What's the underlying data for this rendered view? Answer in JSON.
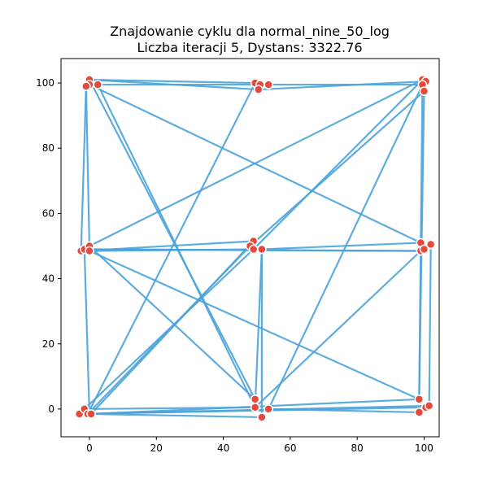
{
  "chart_data": {
    "type": "scatter",
    "title": "Znajdowanie cyklu dla normal_nine_50_log",
    "subtitle": "Liczba iteracji 5, Dystans: 3322.76",
    "xlim": [
      -8.5,
      104.5
    ],
    "ylim": [
      -8.5,
      107.5
    ],
    "x_ticks": [
      0,
      20,
      40,
      60,
      80,
      100
    ],
    "y_ticks": [
      0,
      20,
      40,
      60,
      80,
      100
    ],
    "x_tick_labels": [
      "0",
      "20",
      "40",
      "60",
      "80",
      "100"
    ],
    "y_tick_labels": [
      "0",
      "20",
      "40",
      "60",
      "80",
      "100"
    ],
    "grid": false,
    "colors": {
      "line": "#4da3d9",
      "point": "#e34a3b",
      "point_edge": "#ffffff"
    },
    "points": [
      {
        "x": 0,
        "y": 101
      },
      {
        "x": 2.5,
        "y": 99.5
      },
      {
        "x": 0,
        "y": 99.5
      },
      {
        "x": -1,
        "y": 99
      },
      {
        "x": 49.5,
        "y": 100
      },
      {
        "x": 51,
        "y": 99.5
      },
      {
        "x": 53.5,
        "y": 99.5
      },
      {
        "x": 50.5,
        "y": 98
      },
      {
        "x": 99.5,
        "y": 101
      },
      {
        "x": 100.5,
        "y": 100.5
      },
      {
        "x": 99.5,
        "y": 99.5
      },
      {
        "x": 100,
        "y": 97.5
      },
      {
        "x": -2.5,
        "y": 48.5
      },
      {
        "x": -1.5,
        "y": 49
      },
      {
        "x": 0,
        "y": 50
      },
      {
        "x": 0,
        "y": 48.5
      },
      {
        "x": 49,
        "y": 51.5
      },
      {
        "x": 48,
        "y": 50
      },
      {
        "x": 49,
        "y": 49
      },
      {
        "x": 51.5,
        "y": 49
      },
      {
        "x": 99,
        "y": 51
      },
      {
        "x": 102,
        "y": 50.5
      },
      {
        "x": 99,
        "y": 48.5
      },
      {
        "x": 100,
        "y": 49
      },
      {
        "x": -3,
        "y": -1.5
      },
      {
        "x": -1.5,
        "y": 0
      },
      {
        "x": -0.5,
        "y": -1.5
      },
      {
        "x": 0.5,
        "y": -1.5
      },
      {
        "x": 49.5,
        "y": 3
      },
      {
        "x": 49.5,
        "y": 0.5
      },
      {
        "x": 53.5,
        "y": 0
      },
      {
        "x": 51.5,
        "y": -2.5
      },
      {
        "x": 98.5,
        "y": 3
      },
      {
        "x": 100.5,
        "y": 0.5
      },
      {
        "x": 101.5,
        "y": 1
      },
      {
        "x": 98.5,
        "y": -1
      }
    ],
    "tour": [
      [
        0,
        101
      ],
      [
        50.5,
        98
      ],
      [
        100.5,
        100.5
      ],
      [
        99.5,
        99.5
      ],
      [
        53.5,
        99.5
      ],
      [
        0,
        99.5
      ],
      [
        99,
        51
      ],
      [
        51.5,
        49
      ],
      [
        0,
        48.5
      ],
      [
        98.5,
        3
      ],
      [
        100,
        97.5
      ],
      [
        48,
        50
      ],
      [
        -0.5,
        -1.5
      ],
      [
        49.5,
        100
      ],
      [
        0,
        101
      ],
      [
        49.5,
        3
      ],
      [
        0,
        50
      ],
      [
        99.5,
        101
      ],
      [
        49,
        49
      ],
      [
        -1.5,
        0
      ],
      [
        49.5,
        0.5
      ],
      [
        99,
        48.5
      ],
      [
        100,
        49
      ],
      [
        102,
        50.5
      ],
      [
        101.5,
        1
      ],
      [
        -3,
        -1.5
      ],
      [
        100.5,
        0.5
      ],
      [
        98.5,
        -1
      ],
      [
        53.5,
        0
      ],
      [
        99.5,
        99.5
      ],
      [
        98.5,
        3
      ],
      [
        0.5,
        -1.5
      ],
      [
        49,
        51.5
      ],
      [
        -2.5,
        48.5
      ],
      [
        -1,
        99
      ],
      [
        2.5,
        99.5
      ],
      [
        49.5,
        0.5
      ],
      [
        51.5,
        49
      ],
      [
        51.5,
        -2.5
      ],
      [
        0,
        -1.5
      ],
      [
        -1.5,
        49
      ],
      [
        99,
        48.5
      ],
      [
        0,
        49
      ],
      [
        -1,
        99
      ],
      [
        0,
        101
      ]
    ]
  }
}
